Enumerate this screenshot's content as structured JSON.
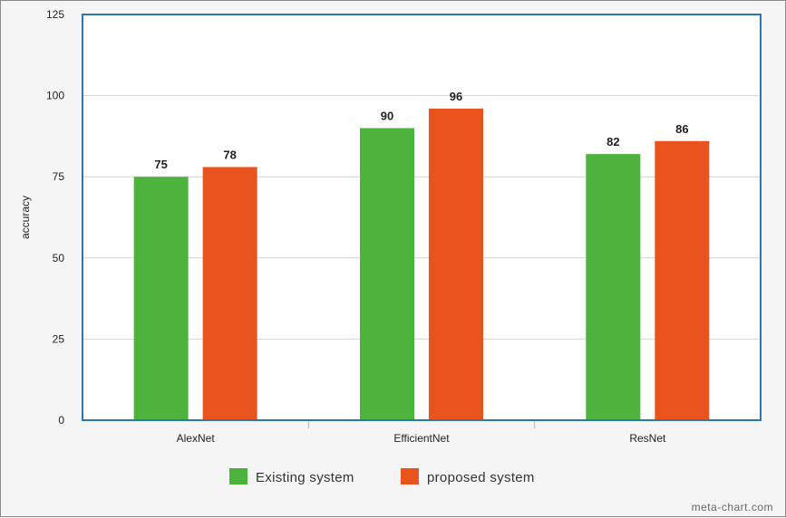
{
  "chart_data": {
    "type": "bar",
    "categories": [
      "AlexNet",
      "EfficientNet",
      "ResNet"
    ],
    "series": [
      {
        "name": "Existing system",
        "values": [
          75,
          90,
          82
        ],
        "color": "#4db33d"
      },
      {
        "name": "proposed system",
        "values": [
          78,
          96,
          86
        ],
        "color": "#e9541e"
      }
    ],
    "title": "",
    "xlabel": "",
    "ylabel": "accuracy",
    "ylim": [
      0,
      125
    ],
    "yticks": [
      0,
      25,
      50,
      75,
      100,
      125
    ],
    "grid": true,
    "legend_position": "bottom-center",
    "credit": "meta-chart.com"
  },
  "colors": {
    "plot_border": "#2e74b5",
    "grid": "#d4d4d4",
    "plot_bg": "#ffffff"
  }
}
